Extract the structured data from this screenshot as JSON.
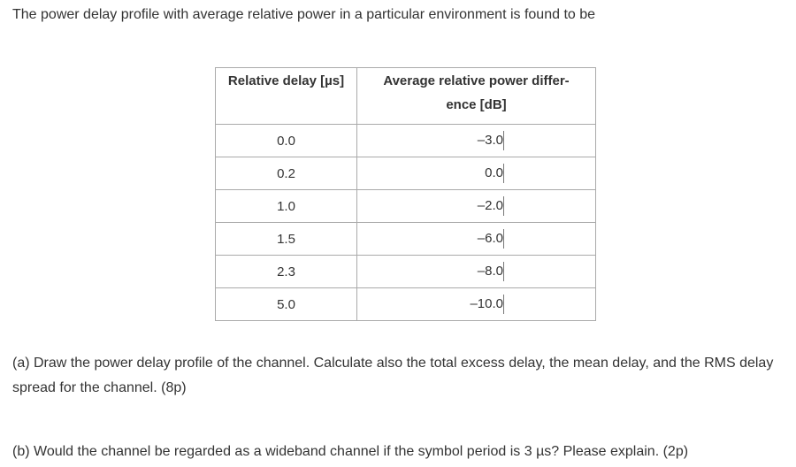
{
  "intro": "The power delay profile with average relative power in a particular environment is found to be",
  "table": {
    "header": [
      "Relative delay [µs]",
      [
        "Average relative power differ-",
        "ence [dB]"
      ]
    ],
    "rows": [
      [
        "0.0",
        "–3.0"
      ],
      [
        "0.2",
        "0.0"
      ],
      [
        "1.0",
        "–2.0"
      ],
      [
        "1.5",
        "–6.0"
      ],
      [
        "2.3",
        "–8.0"
      ],
      [
        "5.0",
        "–10.0"
      ]
    ]
  },
  "questions": [
    "(a) Draw the power delay profile of the channel. Calculate also the total excess delay, the mean delay, and the RMS delay spread for the channel. (8p)",
    "(b) Would the channel be regarded as a wideband channel if the symbol period is 3 µs? Please explain. (2p)"
  ]
}
